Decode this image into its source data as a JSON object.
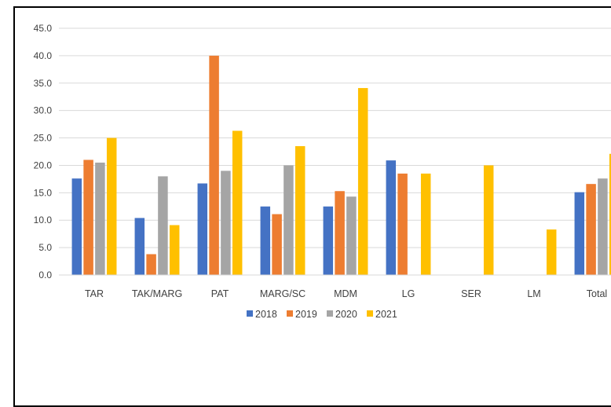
{
  "chart_data": {
    "type": "bar",
    "categories": [
      "TAR",
      "TAK/MARG",
      "PAT",
      "MARG/SC",
      "MDM",
      "LG",
      "SER",
      "LM",
      "Total"
    ],
    "series": [
      {
        "name": "2018",
        "color": "#4472C4",
        "values": [
          17.6,
          10.4,
          16.7,
          12.5,
          12.5,
          20.9,
          null,
          null,
          15.1
        ]
      },
      {
        "name": "2019",
        "color": "#ED7D31",
        "values": [
          21.0,
          3.8,
          40.0,
          11.1,
          15.3,
          18.5,
          null,
          null,
          16.6
        ]
      },
      {
        "name": "2020",
        "color": "#A5A5A5",
        "values": [
          20.5,
          18.0,
          19.0,
          20.0,
          14.3,
          null,
          null,
          null,
          17.6
        ]
      },
      {
        "name": "2021",
        "color": "#FFC000",
        "values": [
          25.0,
          9.1,
          26.3,
          23.5,
          34.1,
          18.5,
          20.0,
          8.3,
          22.1
        ]
      }
    ],
    "yticks": [
      "0.0",
      "5.0",
      "10.0",
      "15.0",
      "20.0",
      "25.0",
      "30.0",
      "35.0",
      "40.0",
      "45.0"
    ],
    "ylim": [
      0,
      45
    ],
    "grid": true,
    "legend": "bottom",
    "title": "",
    "xlabel": "",
    "ylabel": ""
  }
}
